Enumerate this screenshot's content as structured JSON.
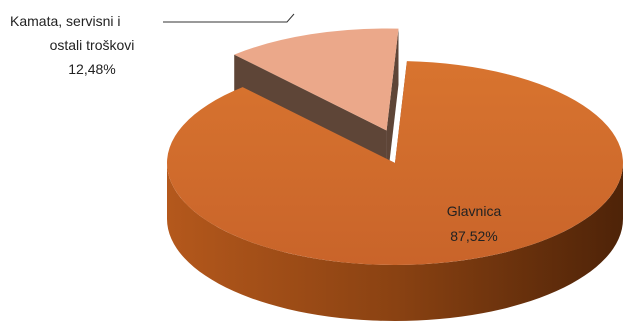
{
  "chart_data": {
    "type": "pie",
    "style": "3d-exploded",
    "title": "",
    "slices": [
      {
        "label_lines": [
          "Glavnica"
        ],
        "value": 87.52,
        "value_label": "87,52%",
        "color": "#cf6a2a",
        "side_color": "#7a3a10",
        "label_position": "inside"
      },
      {
        "label_lines": [
          "Kamata, servisni i",
          "ostali troškovi"
        ],
        "value": 12.48,
        "value_label": "12,48%",
        "color": "#eba88a",
        "side_color": "#5e4537",
        "label_position": "outside-left",
        "exploded": true
      }
    ],
    "legend": "none"
  }
}
